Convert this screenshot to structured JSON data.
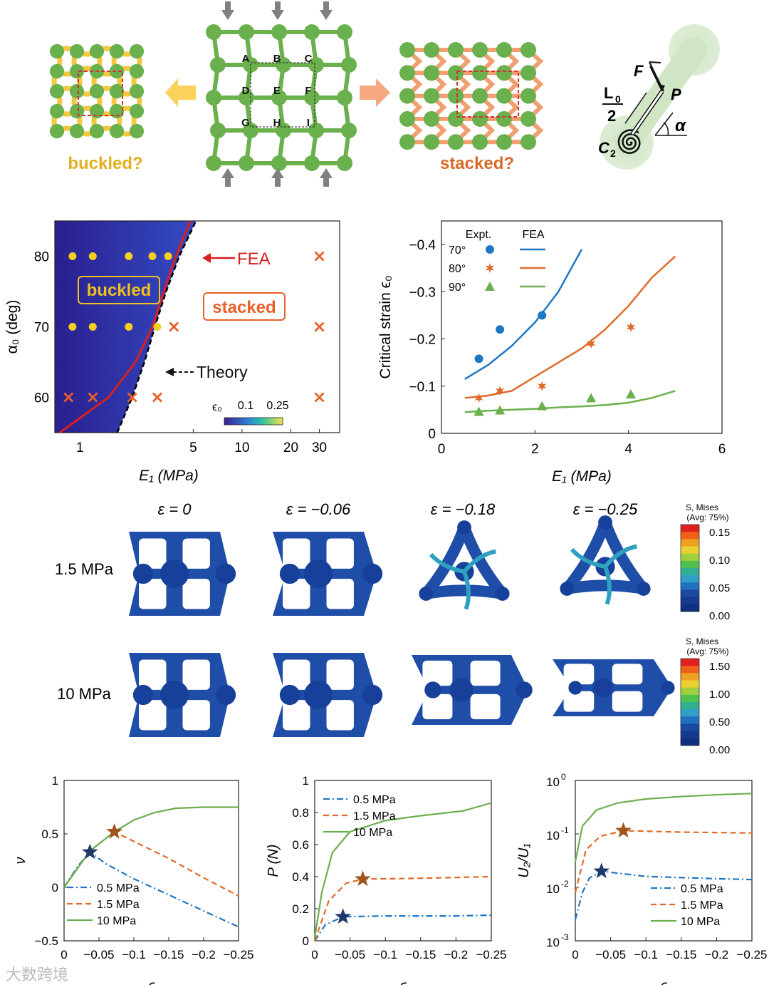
{
  "top": {
    "buckled_label": "buckled?",
    "stacked_label": "stacked?",
    "node_labels": [
      "A",
      "B",
      "C",
      "D",
      "E",
      "F",
      "G",
      "H",
      "I"
    ],
    "diagram_labels": {
      "F": "F",
      "P": "P",
      "alpha": "α",
      "L0": "L",
      "L0_sub": "0",
      "two": "2",
      "C2": "C",
      "C2_sub": "2"
    },
    "colors": {
      "green": "#6ab04c",
      "yellow": "#f5c842",
      "orange": "#f0a070",
      "red_dash": "#d63030",
      "gray_arrow": "#808080"
    }
  },
  "phase": {
    "ylabel": "α₀ (deg)",
    "xlabel": "E₁ (MPa)",
    "x_ticks": [
      "1",
      "5",
      "10",
      "20",
      "30"
    ],
    "y_ticks": [
      "60",
      "70",
      "80"
    ],
    "fea_label": "FEA",
    "theory_label": "Theory",
    "buckled_label": "buckled",
    "stacked_label": "stacked",
    "colorbar_label": "ϵ₀",
    "colorbar_ticks": [
      "0.1",
      "0.25"
    ]
  },
  "critical": {
    "ylabel": "Critical strain ϵ₀",
    "xlabel": "E₁ (MPa)",
    "x_ticks": [
      "0",
      "2",
      "4",
      "6"
    ],
    "y_ticks": [
      "0",
      "−0.1",
      "−0.2",
      "−0.3",
      "−0.4"
    ],
    "legend_expt": "Expt.",
    "legend_fea": "FEA",
    "series_names": [
      "70°",
      "80°",
      "90°"
    ]
  },
  "fem": {
    "col_labels": [
      "ε = 0",
      "ε = −0.06",
      "ε = −0.18",
      "ε = −0.25"
    ],
    "row_labels": [
      "1.5 MPa",
      "10 MPa"
    ],
    "colorbar_title": "S, Mises",
    "colorbar_sub": "(Avg: 75%)",
    "cb1_ticks": [
      "0.15",
      "0.10",
      "0.05",
      "0.00"
    ],
    "cb2_ticks": [
      "1.50",
      "1.00",
      "0.50",
      "0.00"
    ]
  },
  "chart_data": [
    {
      "type": "scatter",
      "title": "",
      "xlabel": "E₁ (MPa)",
      "ylabel": "α₀ (deg)",
      "xscale": "log",
      "xlim": [
        0.7,
        40
      ],
      "ylim": [
        55,
        85
      ],
      "series": [
        {
          "name": "buckled",
          "marker": "circle",
          "color": "#f5d020",
          "points": [
            [
              0.9,
              80
            ],
            [
              1.2,
              80
            ],
            [
              2,
              80
            ],
            [
              2.8,
              80
            ],
            [
              3.5,
              80
            ],
            [
              0.9,
              70
            ],
            [
              1.2,
              70
            ],
            [
              2,
              70
            ],
            [
              3,
              70
            ]
          ]
        },
        {
          "name": "stacked",
          "marker": "x",
          "color": "#e8602a",
          "points": [
            [
              30,
              80
            ],
            [
              3.8,
              70
            ],
            [
              30,
              70
            ],
            [
              0.85,
              60
            ],
            [
              1.2,
              60
            ],
            [
              2.1,
              60
            ],
            [
              3,
              60
            ],
            [
              30,
              60
            ]
          ]
        },
        {
          "name": "FEA",
          "line": true,
          "color": "#d62020",
          "points": [
            [
              0.75,
              55
            ],
            [
              1.5,
              60
            ],
            [
              2.2,
              65
            ],
            [
              2.8,
              70
            ],
            [
              3.3,
              75
            ],
            [
              3.9,
              80
            ],
            [
              4.8,
              85
            ]
          ]
        },
        {
          "name": "Theory",
          "line": true,
          "dashed": true,
          "color": "#000000",
          "points": [
            [
              1.7,
              55
            ],
            [
              2.1,
              60
            ],
            [
              2.5,
              65
            ],
            [
              2.9,
              70
            ],
            [
              3.4,
              75
            ],
            [
              4.1,
              80
            ],
            [
              5.2,
              85
            ]
          ]
        }
      ]
    },
    {
      "type": "line",
      "xlabel": "E₁ (MPa)",
      "ylabel": "Critical strain ϵ₀",
      "xlim": [
        0,
        6
      ],
      "ylim": [
        0,
        -0.45
      ],
      "series": [
        {
          "name": "70°",
          "color": "#1f77c4",
          "marker": "circle",
          "fea": [
            [
              0.5,
              -0.115
            ],
            [
              1,
              -0.145
            ],
            [
              1.5,
              -0.185
            ],
            [
              2,
              -0.235
            ],
            [
              2.5,
              -0.3
            ],
            [
              3,
              -0.39
            ]
          ],
          "expt": [
            [
              0.8,
              -0.158
            ],
            [
              1.25,
              -0.22
            ],
            [
              2.15,
              -0.25
            ]
          ]
        },
        {
          "name": "80°",
          "color": "#e06a2a",
          "marker": "star",
          "fea": [
            [
              0.5,
              -0.075
            ],
            [
              1,
              -0.08
            ],
            [
              1.5,
              -0.09
            ],
            [
              2,
              -0.12
            ],
            [
              2.5,
              -0.15
            ],
            [
              3,
              -0.18
            ],
            [
              3.5,
              -0.22
            ],
            [
              4,
              -0.27
            ],
            [
              4.5,
              -0.33
            ],
            [
              5,
              -0.375
            ]
          ],
          "expt": [
            [
              0.8,
              -0.075
            ],
            [
              1.25,
              -0.09
            ],
            [
              2.15,
              -0.1
            ],
            [
              3.2,
              -0.19
            ],
            [
              4.05,
              -0.225
            ]
          ]
        },
        {
          "name": "90°",
          "color": "#6ab04c",
          "marker": "triangle",
          "fea": [
            [
              0.5,
              -0.045
            ],
            [
              1,
              -0.048
            ],
            [
              1.5,
              -0.05
            ],
            [
              2,
              -0.052
            ],
            [
              2.5,
              -0.055
            ],
            [
              3,
              -0.057
            ],
            [
              3.5,
              -0.06
            ],
            [
              4,
              -0.065
            ],
            [
              4.5,
              -0.075
            ],
            [
              5,
              -0.09
            ]
          ],
          "expt": [
            [
              0.8,
              -0.046
            ],
            [
              1.25,
              -0.049
            ],
            [
              2.15,
              -0.058
            ],
            [
              3.2,
              -0.075
            ],
            [
              4.05,
              -0.083
            ]
          ]
        }
      ]
    },
    {
      "type": "line",
      "xlabel": "ϵ",
      "ylabel": "ν",
      "xlim": [
        0,
        -0.25
      ],
      "ylim": [
        -0.5,
        1
      ],
      "x_ticks": [
        "0",
        "−0.05",
        "−0.1",
        "−0.15",
        "−0.2",
        "−0.25"
      ],
      "y_ticks": [
        "−0.5",
        "0",
        "0.5",
        "1"
      ],
      "series": [
        {
          "name": "0.5 MPa",
          "style": "dashdot",
          "color": "#1f77c4",
          "points": [
            [
              0,
              0
            ],
            [
              -0.02,
              0.2
            ],
            [
              -0.037,
              0.33
            ],
            [
              -0.06,
              0.22
            ],
            [
              -0.1,
              0.08
            ],
            [
              -0.15,
              -0.07
            ],
            [
              -0.2,
              -0.22
            ],
            [
              -0.25,
              -0.37
            ]
          ]
        },
        {
          "name": "1.5 MPa",
          "style": "dashed",
          "color": "#e06a2a",
          "points": [
            [
              0,
              0
            ],
            [
              -0.037,
              0.34
            ],
            [
              -0.072,
              0.52
            ],
            [
              -0.1,
              0.43
            ],
            [
              -0.15,
              0.27
            ],
            [
              -0.2,
              0.09
            ],
            [
              -0.25,
              -0.08
            ]
          ]
        },
        {
          "name": "10 MPa",
          "style": "solid",
          "color": "#6ab04c",
          "points": [
            [
              0,
              0
            ],
            [
              -0.037,
              0.34
            ],
            [
              -0.072,
              0.52
            ],
            [
              -0.1,
              0.63
            ],
            [
              -0.13,
              0.7
            ],
            [
              -0.16,
              0.74
            ],
            [
              -0.2,
              0.75
            ],
            [
              -0.25,
              0.75
            ]
          ]
        }
      ],
      "markers": [
        {
          "x": -0.037,
          "y": 0.33,
          "color": "#1f3a6a"
        },
        {
          "x": -0.072,
          "y": 0.52,
          "color": "#a0551e"
        }
      ]
    },
    {
      "type": "line",
      "xlabel": "ϵ",
      "ylabel": "P (N)",
      "xlim": [
        0,
        -0.25
      ],
      "ylim": [
        0,
        1
      ],
      "x_ticks": [
        "0",
        "−0.05",
        "−0.1",
        "−0.15",
        "−0.2",
        "−0.25"
      ],
      "y_ticks": [
        "0",
        "0.2",
        "0.4",
        "0.6",
        "0.8",
        "1"
      ],
      "series": [
        {
          "name": "0.5 MPa",
          "style": "dashdot",
          "color": "#1f77c4",
          "points": [
            [
              0,
              0
            ],
            [
              -0.015,
              0.1
            ],
            [
              -0.04,
              0.15
            ],
            [
              -0.1,
              0.155
            ],
            [
              -0.2,
              0.155
            ],
            [
              -0.25,
              0.16
            ]
          ]
        },
        {
          "name": "1.5 MPa",
          "style": "dashed",
          "color": "#e06a2a",
          "points": [
            [
              0,
              0
            ],
            [
              -0.02,
              0.25
            ],
            [
              -0.045,
              0.36
            ],
            [
              -0.068,
              0.385
            ],
            [
              -0.15,
              0.39
            ],
            [
              -0.25,
              0.4
            ]
          ]
        },
        {
          "name": "10 MPa",
          "style": "solid",
          "color": "#6ab04c",
          "points": [
            [
              0,
              0.02
            ],
            [
              -0.01,
              0.3
            ],
            [
              -0.025,
              0.55
            ],
            [
              -0.05,
              0.68
            ],
            [
              -0.1,
              0.75
            ],
            [
              -0.15,
              0.78
            ],
            [
              -0.21,
              0.81
            ],
            [
              -0.25,
              0.86
            ]
          ]
        }
      ],
      "markers": [
        {
          "x": -0.04,
          "y": 0.15,
          "color": "#1f3a6a"
        },
        {
          "x": -0.068,
          "y": 0.385,
          "color": "#a0551e"
        }
      ]
    },
    {
      "type": "line",
      "xlabel": "ϵ",
      "ylabel": "U₂/U₁",
      "yscale": "log",
      "xlim": [
        0,
        -0.25
      ],
      "ylim": [
        0.001,
        1
      ],
      "x_ticks": [
        "0",
        "−0.05",
        "−0.1",
        "−0.15",
        "−0.2",
        "−0.25"
      ],
      "series": [
        {
          "name": "0.5 MPa",
          "style": "dashdot",
          "color": "#1f77c4",
          "points": [
            [
              0,
              0.0025
            ],
            [
              -0.01,
              0.008
            ],
            [
              -0.02,
              0.015
            ],
            [
              -0.037,
              0.02
            ],
            [
              -0.1,
              0.016
            ],
            [
              -0.2,
              0.0145
            ],
            [
              -0.25,
              0.014
            ]
          ]
        },
        {
          "name": "1.5 MPa",
          "style": "dashed",
          "color": "#e06a2a",
          "points": [
            [
              0,
              0.008
            ],
            [
              -0.015,
              0.05
            ],
            [
              -0.035,
              0.09
            ],
            [
              -0.068,
              0.115
            ],
            [
              -0.15,
              0.108
            ],
            [
              -0.25,
              0.104
            ]
          ]
        },
        {
          "name": "10 MPa",
          "style": "solid",
          "color": "#6ab04c",
          "points": [
            [
              0,
              0.03
            ],
            [
              -0.01,
              0.14
            ],
            [
              -0.03,
              0.28
            ],
            [
              -0.06,
              0.38
            ],
            [
              -0.1,
              0.45
            ],
            [
              -0.15,
              0.5
            ],
            [
              -0.2,
              0.54
            ],
            [
              -0.25,
              0.57
            ]
          ]
        }
      ],
      "markers": [
        {
          "x": -0.037,
          "y": 0.02,
          "color": "#1f3a6a"
        },
        {
          "x": -0.068,
          "y": 0.115,
          "color": "#a0551e"
        }
      ]
    }
  ],
  "watermark": "大数跨境"
}
